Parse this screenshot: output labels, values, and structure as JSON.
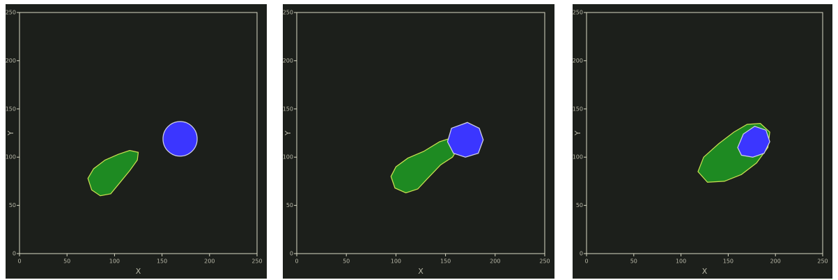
{
  "panels": [
    {
      "x_axis": {
        "label": "X",
        "lim": [
          0,
          250
        ],
        "ticks": [
          0,
          50,
          100,
          150,
          200,
          250
        ]
      },
      "y_axis": {
        "label": "Y",
        "lim": [
          0,
          250
        ],
        "ticks": [
          0,
          50,
          100,
          150,
          200,
          250
        ]
      }
    },
    {
      "x_axis": {
        "label": "X",
        "lim": [
          0,
          250
        ],
        "ticks": [
          0,
          50,
          100,
          150,
          200,
          250
        ]
      },
      "y_axis": {
        "label": "Y",
        "lim": [
          0,
          250
        ],
        "ticks": [
          0,
          50,
          100,
          150,
          200,
          250
        ]
      }
    },
    {
      "x_axis": {
        "label": "X",
        "lim": [
          0,
          250
        ],
        "ticks": [
          0,
          50,
          100,
          150,
          200,
          250
        ]
      },
      "y_axis": {
        "label": "Y",
        "lim": [
          0,
          250
        ],
        "ticks": [
          0,
          50,
          100,
          150,
          200,
          250
        ]
      }
    }
  ]
}
